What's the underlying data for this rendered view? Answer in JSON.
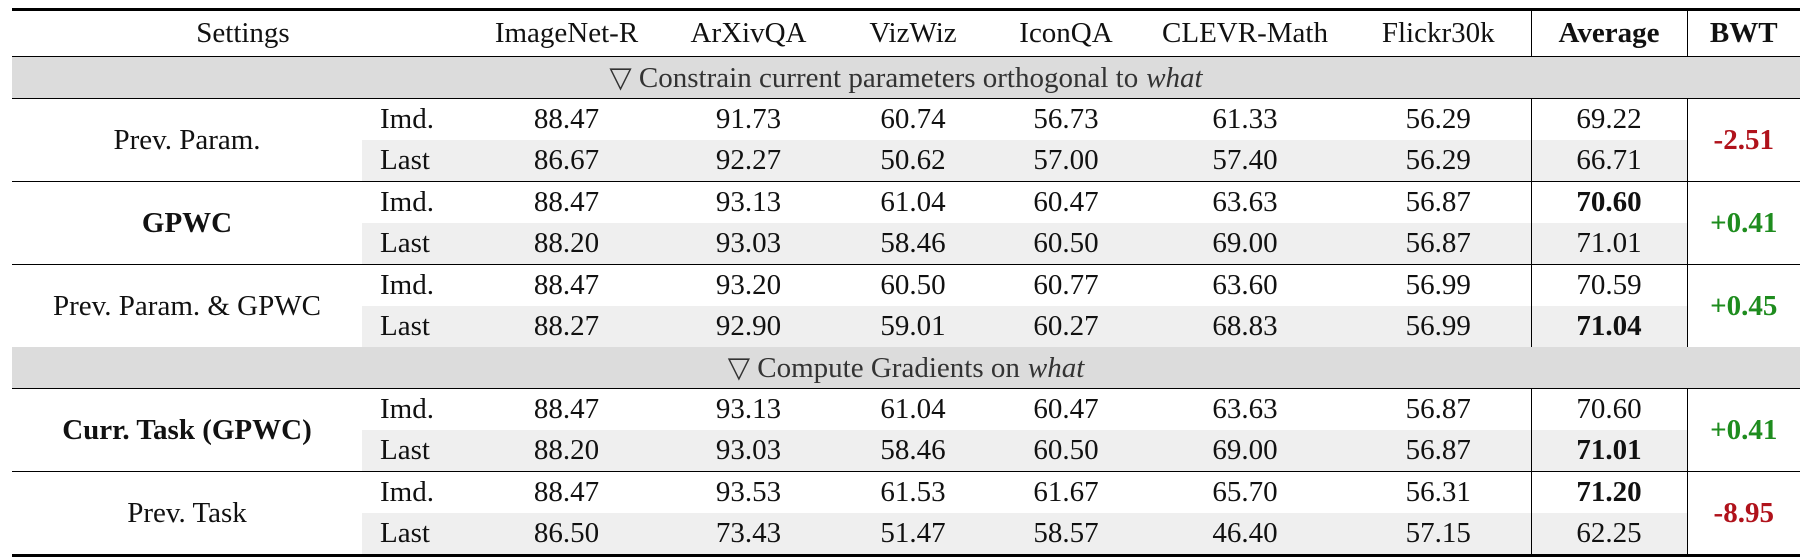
{
  "table": {
    "header": {
      "settings": "Settings",
      "columns": [
        "ImageNet-R",
        "ArXivQA",
        "VizWiz",
        "IconQA",
        "CLEVR-Math",
        "Flickr30k"
      ],
      "average": "Average",
      "bwt": "BWT"
    },
    "sections": [
      {
        "title": {
          "text": "▽ Constrain current parameters orthogonal to",
          "emphasis": "what"
        },
        "groups": [
          {
            "setting": "Prev. Param.",
            "setting_bold": false,
            "bwt": "-2.51",
            "bwt_color": "#b0121b",
            "rows": [
              {
                "label": "Imd.",
                "values": [
                  "88.47",
                  "91.73",
                  "60.74",
                  "56.73",
                  "61.33",
                  "56.29"
                ],
                "average": "69.22",
                "average_bold": false
              },
              {
                "label": "Last",
                "values": [
                  "86.67",
                  "92.27",
                  "50.62",
                  "57.00",
                  "57.40",
                  "56.29"
                ],
                "average": "66.71",
                "average_bold": false
              }
            ]
          },
          {
            "setting": "GPWC",
            "setting_bold": true,
            "bwt": "+0.41",
            "bwt_color": "#1e8c1e",
            "rows": [
              {
                "label": "Imd.",
                "values": [
                  "88.47",
                  "93.13",
                  "61.04",
                  "60.47",
                  "63.63",
                  "56.87"
                ],
                "average": "70.60",
                "average_bold": true
              },
              {
                "label": "Last",
                "values": [
                  "88.20",
                  "93.03",
                  "58.46",
                  "60.50",
                  "69.00",
                  "56.87"
                ],
                "average": "71.01",
                "average_bold": false
              }
            ]
          },
          {
            "setting": "Prev. Param. & GPWC",
            "setting_bold": false,
            "bwt": "+0.45",
            "bwt_color": "#1e8c1e",
            "rows": [
              {
                "label": "Imd.",
                "values": [
                  "88.47",
                  "93.20",
                  "60.50",
                  "60.77",
                  "63.60",
                  "56.99"
                ],
                "average": "70.59",
                "average_bold": false
              },
              {
                "label": "Last",
                "values": [
                  "88.27",
                  "92.90",
                  "59.01",
                  "60.27",
                  "68.83",
                  "56.99"
                ],
                "average": "71.04",
                "average_bold": true
              }
            ]
          }
        ]
      },
      {
        "title": {
          "text": "▽ Compute Gradients on",
          "emphasis": "what"
        },
        "groups": [
          {
            "setting": "Curr. Task (GPWC)",
            "setting_bold": true,
            "bwt": "+0.41",
            "bwt_color": "#1e8c1e",
            "rows": [
              {
                "label": "Imd.",
                "values": [
                  "88.47",
                  "93.13",
                  "61.04",
                  "60.47",
                  "63.63",
                  "56.87"
                ],
                "average": "70.60",
                "average_bold": false
              },
              {
                "label": "Last",
                "values": [
                  "88.20",
                  "93.03",
                  "58.46",
                  "60.50",
                  "69.00",
                  "56.87"
                ],
                "average": "71.01",
                "average_bold": true
              }
            ]
          },
          {
            "setting": "Prev. Task",
            "setting_bold": false,
            "bwt": "-8.95",
            "bwt_color": "#b0121b",
            "rows": [
              {
                "label": "Imd.",
                "values": [
                  "88.47",
                  "93.53",
                  "61.53",
                  "61.67",
                  "65.70",
                  "56.31"
                ],
                "average": "71.20",
                "average_bold": true
              },
              {
                "label": "Last",
                "values": [
                  "86.50",
                  "73.43",
                  "51.47",
                  "58.57",
                  "46.40",
                  "57.15"
                ],
                "average": "62.25",
                "average_bold": false
              }
            ]
          }
        ]
      }
    ]
  }
}
